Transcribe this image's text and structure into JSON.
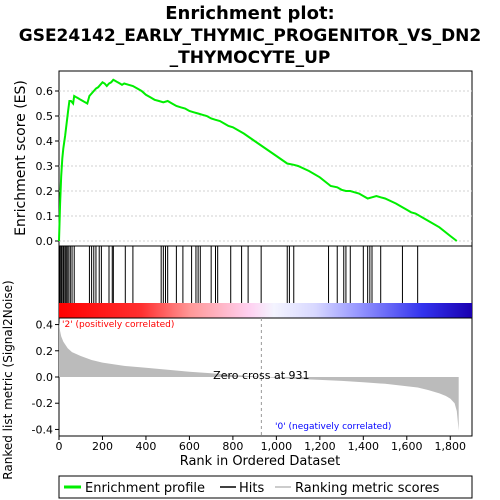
{
  "title_line1": "Enrichment plot:",
  "title_line2": "GSE24142_EARLY_THYMIC_PROGENITOR_VS_DN2",
  "title_line3": "_THYMOCYTE_UP",
  "colors": {
    "es_line": "#00ee00",
    "hits": "#000000",
    "metric_fill": "#bbbbbb",
    "positive_text": "#ff0000",
    "negative_text": "#0000ff",
    "axis": "#000000",
    "grid": "#d0d0d0"
  },
  "chart_data": {
    "type": "line",
    "xlabel": "Rank in Ordered Dataset",
    "xlim": [
      0,
      1900
    ],
    "x_ticks": [
      0,
      200,
      400,
      600,
      800,
      1000,
      1200,
      1400,
      1600,
      1800
    ],
    "x_tick_labels": [
      "0",
      "200",
      "400",
      "600",
      "800",
      "1,000",
      "1,200",
      "1,400",
      "1,600",
      "1,800"
    ],
    "es_panel": {
      "ylabel": "Enrichment score (ES)",
      "ylim": [
        -0.02,
        0.68
      ],
      "y_ticks": [
        0.0,
        0.1,
        0.2,
        0.3,
        0.4,
        0.5,
        0.6
      ],
      "y_tick_labels": [
        "0.0",
        "0.1",
        "0.2",
        "0.3",
        "0.4",
        "0.5",
        "0.6"
      ],
      "series": [
        {
          "name": "Enrichment profile",
          "x": [
            0,
            5,
            10,
            15,
            20,
            28,
            35,
            42,
            48,
            55,
            65,
            70,
            80,
            90,
            100,
            110,
            120,
            130,
            140,
            150,
            160,
            170,
            180,
            190,
            200,
            210,
            220,
            230,
            240,
            250,
            260,
            270,
            280,
            290,
            300,
            320,
            340,
            360,
            380,
            400,
            420,
            440,
            460,
            480,
            500,
            520,
            540,
            560,
            580,
            600,
            620,
            640,
            660,
            680,
            700,
            720,
            740,
            760,
            780,
            800,
            850,
            900,
            950,
            1000,
            1050,
            1080,
            1100,
            1150,
            1200,
            1250,
            1280,
            1300,
            1320,
            1340,
            1360,
            1380,
            1400,
            1420,
            1440,
            1460,
            1480,
            1500,
            1550,
            1580,
            1600,
            1620,
            1640,
            1660,
            1700,
            1750,
            1800,
            1830
          ],
          "y": [
            0.0,
            0.15,
            0.26,
            0.33,
            0.37,
            0.42,
            0.47,
            0.52,
            0.56,
            0.56,
            0.55,
            0.58,
            0.575,
            0.57,
            0.565,
            0.56,
            0.555,
            0.55,
            0.58,
            0.59,
            0.6,
            0.61,
            0.615,
            0.625,
            0.635,
            0.63,
            0.62,
            0.63,
            0.635,
            0.645,
            0.64,
            0.635,
            0.63,
            0.625,
            0.63,
            0.625,
            0.62,
            0.61,
            0.6,
            0.585,
            0.575,
            0.565,
            0.56,
            0.555,
            0.56,
            0.55,
            0.54,
            0.535,
            0.53,
            0.52,
            0.515,
            0.51,
            0.505,
            0.5,
            0.49,
            0.485,
            0.48,
            0.47,
            0.46,
            0.455,
            0.43,
            0.4,
            0.37,
            0.34,
            0.31,
            0.305,
            0.3,
            0.28,
            0.255,
            0.22,
            0.215,
            0.205,
            0.2,
            0.2,
            0.195,
            0.19,
            0.18,
            0.17,
            0.175,
            0.18,
            0.175,
            0.17,
            0.15,
            0.135,
            0.125,
            0.115,
            0.11,
            0.1,
            0.08,
            0.055,
            0.02,
            0.0
          ]
        }
      ]
    },
    "hits_panel": {
      "hit_positions": [
        3,
        8,
        12,
        18,
        22,
        28,
        33,
        38,
        45,
        52,
        60,
        70,
        140,
        150,
        160,
        170,
        185,
        195,
        230,
        245,
        250,
        305,
        340,
        470,
        480,
        490,
        500,
        540,
        570,
        610,
        630,
        640,
        650,
        700,
        720,
        730,
        790,
        840,
        870,
        930,
        1050,
        1060,
        1080,
        1240,
        1280,
        1310,
        1320,
        1340,
        1400,
        1420,
        1430,
        1440,
        1480,
        1580,
        1650
      ]
    },
    "metric_panel": {
      "ylabel": "Ranked list metric (Signal2Noise)",
      "ylim": [
        -0.45,
        0.45
      ],
      "y_ticks": [
        0.4,
        0.2,
        0.0,
        -0.2,
        -0.4
      ],
      "y_tick_labels": [
        "0.4",
        "0.2",
        "0.0",
        "-0.2",
        "-0.4"
      ],
      "x": [
        0,
        5,
        10,
        20,
        40,
        60,
        100,
        150,
        200,
        300,
        400,
        500,
        600,
        700,
        800,
        900,
        931,
        1000,
        1100,
        1200,
        1300,
        1400,
        1500,
        1600,
        1650,
        1700,
        1750,
        1780,
        1800,
        1820,
        1830,
        1839
      ],
      "values": [
        0.42,
        0.35,
        0.31,
        0.27,
        0.22,
        0.19,
        0.16,
        0.13,
        0.11,
        0.085,
        0.07,
        0.055,
        0.04,
        0.028,
        0.015,
        0.005,
        0.0,
        -0.008,
        -0.015,
        -0.022,
        -0.03,
        -0.04,
        -0.052,
        -0.07,
        -0.08,
        -0.1,
        -0.125,
        -0.145,
        -0.165,
        -0.2,
        -0.26,
        -0.41
      ],
      "zero_cross_label": "Zero cross at 931",
      "zero_cross_x": 931,
      "positive_label": "'2' (positively correlated)",
      "negative_label": "'0' (negatively correlated)"
    },
    "legend": {
      "placement": "bottom",
      "entries": [
        "Enrichment profile",
        "Hits",
        "Ranking metric scores"
      ]
    }
  }
}
